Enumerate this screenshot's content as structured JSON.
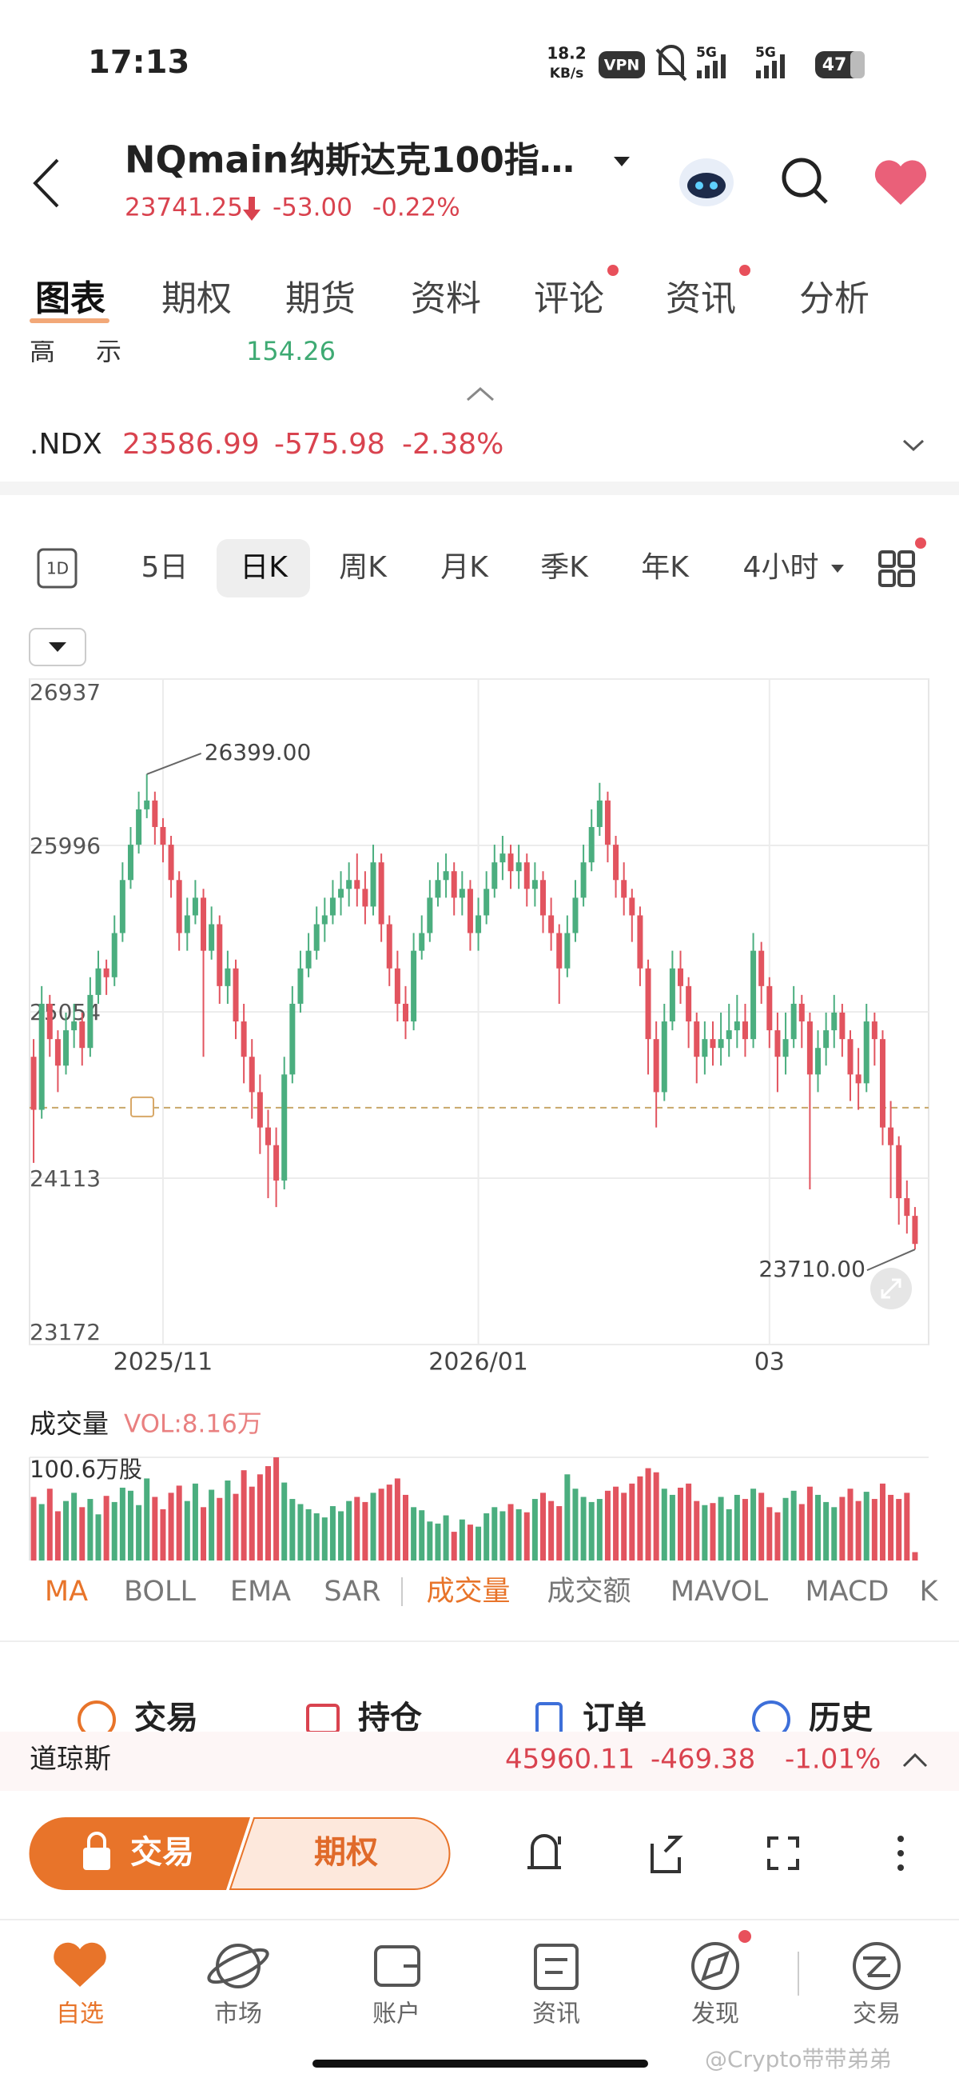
{
  "status_bar": {
    "time": "17:13",
    "net_speed": "18.2",
    "net_unit": "KB/s",
    "vpn": "VPN",
    "signal_1": "5G",
    "signal_2": "5G",
    "battery": "47"
  },
  "header": {
    "symbol": "NQmain",
    "name": "纳斯达克100指…",
    "price": "23741.25",
    "change": "-53.00",
    "change_pct": "-0.22%"
  },
  "tabs": [
    "图表",
    "期权",
    "期货",
    "资料",
    "评论",
    "资讯",
    "分析"
  ],
  "partial_row": [
    "高",
    "示",
    "154.26"
  ],
  "index_row": {
    "name": ".NDX",
    "price": "23586.99",
    "change": "-575.98",
    "change_pct": "-2.38%"
  },
  "periods": [
    "1D",
    "5日",
    "日K",
    "周K",
    "月K",
    "季K",
    "年K",
    "4小时"
  ],
  "chart_data": {
    "type": "candlestick",
    "up_color": "#4bae7f",
    "down_color": "#e2545f",
    "grid": true,
    "ylim": [
      23172,
      26937
    ],
    "yticks": [
      26937,
      25996,
      25054,
      24113,
      23172
    ],
    "xticks": [
      {
        "value": 16,
        "label": "2025/11"
      },
      {
        "value": 55,
        "label": "2026/01"
      },
      {
        "value": 91,
        "label": "03"
      }
    ],
    "reference_line": 24512,
    "max_label": {
      "value": 26399,
      "label": "26399.00"
    },
    "min_label": {
      "value": 23710,
      "label": "23710.00"
    },
    "open": [
      24800,
      24500,
      25100,
      24900,
      24750,
      24950,
      25000,
      24850,
      25150,
      25300,
      25250,
      25500,
      25800,
      26000,
      26200,
      26250,
      26100,
      26000,
      25800,
      25500,
      25600,
      25700,
      25400,
      25550,
      25200,
      25300,
      25000,
      24800,
      24600,
      24400,
      24300,
      24100,
      24700,
      25100,
      25300,
      25400,
      25550,
      25600,
      25700,
      25750,
      25800,
      25750,
      25650,
      25900,
      25550,
      25300,
      25100,
      25000,
      25400,
      25500,
      25700,
      25800,
      25850,
      25700,
      25750,
      25500,
      25600,
      25750,
      25900,
      25950,
      25850,
      25900,
      25750,
      25800,
      25600,
      25500,
      25300,
      25500,
      25700,
      25900,
      26100,
      26250,
      26000,
      25800,
      25700,
      25600,
      25300,
      24900,
      24600,
      25000,
      25300,
      25200,
      25000,
      24800,
      24900,
      24850,
      24900,
      24950,
      25000,
      24900,
      25400,
      25200,
      24950,
      24800,
      24900,
      25100,
      25000,
      24700,
      24850,
      24950,
      25050,
      24900,
      24700,
      24650,
      25000,
      24900,
      24400,
      24300,
      24000,
      23900
    ],
    "high": [
      24900,
      25200,
      25150,
      24950,
      25050,
      25100,
      25050,
      25250,
      25400,
      25350,
      25600,
      25900,
      26100,
      26300,
      26399,
      26300,
      26150,
      26050,
      25850,
      25700,
      25800,
      25750,
      25650,
      25600,
      25400,
      25350,
      25100,
      24900,
      24700,
      24500,
      24400,
      24800,
      25200,
      25400,
      25500,
      25650,
      25700,
      25800,
      25850,
      25900,
      25950,
      25850,
      26000,
      25950,
      25600,
      25400,
      25200,
      25500,
      25600,
      25800,
      25900,
      25950,
      25900,
      25850,
      25800,
      25700,
      25850,
      26000,
      26050,
      26000,
      26000,
      25950,
      25900,
      25850,
      25700,
      25550,
      25600,
      25800,
      26000,
      26200,
      26350,
      26300,
      26050,
      25900,
      25750,
      25650,
      25350,
      25000,
      25100,
      25400,
      25400,
      25250,
      25050,
      25000,
      25000,
      25050,
      25100,
      25150,
      25100,
      25500,
      25450,
      25250,
      25050,
      25050,
      25200,
      25150,
      25050,
      24950,
      25050,
      25150,
      25100,
      24950,
      24850,
      25100,
      25050,
      24950,
      24550,
      24350,
      24100,
      23950
    ],
    "low": [
      24200,
      24450,
      24800,
      24600,
      24700,
      24850,
      24750,
      24800,
      25100,
      25150,
      25200,
      25450,
      25750,
      25950,
      26150,
      26000,
      25900,
      25700,
      25400,
      25400,
      25550,
      24800,
      25350,
      25100,
      25100,
      24900,
      24650,
      24450,
      24250,
      24000,
      23950,
      24050,
      24650,
      25050,
      25250,
      25350,
      25450,
      25550,
      25600,
      25650,
      25650,
      25550,
      25600,
      25450,
      25200,
      25000,
      24900,
      24950,
      25350,
      25450,
      25650,
      25700,
      25600,
      25600,
      25400,
      25400,
      25550,
      25700,
      25800,
      25750,
      25750,
      25650,
      25650,
      25500,
      25400,
      25100,
      25250,
      25450,
      25650,
      25850,
      26050,
      25900,
      25700,
      25600,
      25450,
      25200,
      24700,
      24400,
      24550,
      24950,
      25100,
      24850,
      24650,
      24700,
      24750,
      24750,
      24800,
      24850,
      24800,
      24850,
      25100,
      24850,
      24600,
      24700,
      24850,
      24850,
      24050,
      24600,
      24750,
      24850,
      24800,
      24550,
      24500,
      24600,
      24750,
      24300,
      24000,
      23850,
      23800,
      23710
    ],
    "close": [
      24500,
      25100,
      24900,
      24750,
      24950,
      25000,
      24850,
      25150,
      25300,
      25250,
      25500,
      25800,
      26000,
      26200,
      26250,
      26100,
      26000,
      25800,
      25500,
      25600,
      25700,
      25400,
      25550,
      25200,
      25300,
      25000,
      24800,
      24600,
      24400,
      24300,
      24100,
      24700,
      25100,
      25300,
      25400,
      25550,
      25600,
      25700,
      25750,
      25800,
      25750,
      25650,
      25900,
      25550,
      25300,
      25100,
      25000,
      25400,
      25500,
      25700,
      25800,
      25850,
      25700,
      25750,
      25500,
      25600,
      25750,
      25900,
      25950,
      25850,
      25900,
      25750,
      25800,
      25600,
      25500,
      25300,
      25500,
      25700,
      25900,
      26100,
      26250,
      26000,
      25800,
      25700,
      25600,
      25300,
      24900,
      24600,
      25000,
      25300,
      25200,
      25000,
      24800,
      24900,
      24850,
      24900,
      24950,
      25000,
      24900,
      25400,
      25200,
      24950,
      24800,
      24900,
      25100,
      25000,
      24700,
      24850,
      24950,
      25050,
      24900,
      24700,
      24650,
      25000,
      24900,
      24400,
      24300,
      24000,
      23900,
      23741.25
    ],
    "volume_title": "成交量",
    "volume_label": "VOL:8.16万",
    "volume_ylim": [
      0,
      100.6
    ],
    "volume_ticks": [
      {
        "value": 100.6,
        "label": "100.6万股"
      }
    ],
    "volume": [
      62,
      55,
      70,
      48,
      58,
      66,
      52,
      60,
      45,
      63,
      57,
      71,
      68,
      54,
      80,
      62,
      50,
      66,
      73,
      58,
      75,
      52,
      69,
      61,
      78,
      65,
      88,
      72,
      84,
      92,
      100.6,
      76,
      60,
      55,
      50,
      46,
      42,
      53,
      48,
      58,
      62,
      57,
      66,
      70,
      74,
      80,
      64,
      52,
      49,
      38,
      36,
      44,
      28,
      40,
      35,
      33,
      46,
      52,
      48,
      55,
      50,
      47,
      60,
      66,
      58,
      53,
      84,
      70,
      62,
      57,
      60,
      68,
      72,
      66,
      75,
      82,
      90,
      86,
      70,
      64,
      71,
      75,
      58,
      54,
      56,
      62,
      50,
      64,
      60,
      70,
      66,
      52,
      47,
      61,
      68,
      55,
      72,
      64,
      57,
      52,
      62,
      70,
      58,
      67,
      60,
      75,
      64,
      60,
      66,
      8.16
    ]
  },
  "indicators": [
    "MA",
    "BOLL",
    "EMA",
    "SAR",
    "成交量",
    "成交额",
    "MAVOL",
    "MACD",
    "K"
  ],
  "trade_tabs": [
    "交易",
    "持仓",
    "订单",
    "历史"
  ],
  "ticker": {
    "name": "道琼斯",
    "price": "45960.11",
    "change": "-469.38",
    "change_pct": "-1.01%"
  },
  "actions": {
    "trade": "交易",
    "options": "期权"
  },
  "nav": [
    "自选",
    "市场",
    "账户",
    "资讯",
    "发现",
    "交易"
  ],
  "watermark": "@Crypto带带弟弟"
}
